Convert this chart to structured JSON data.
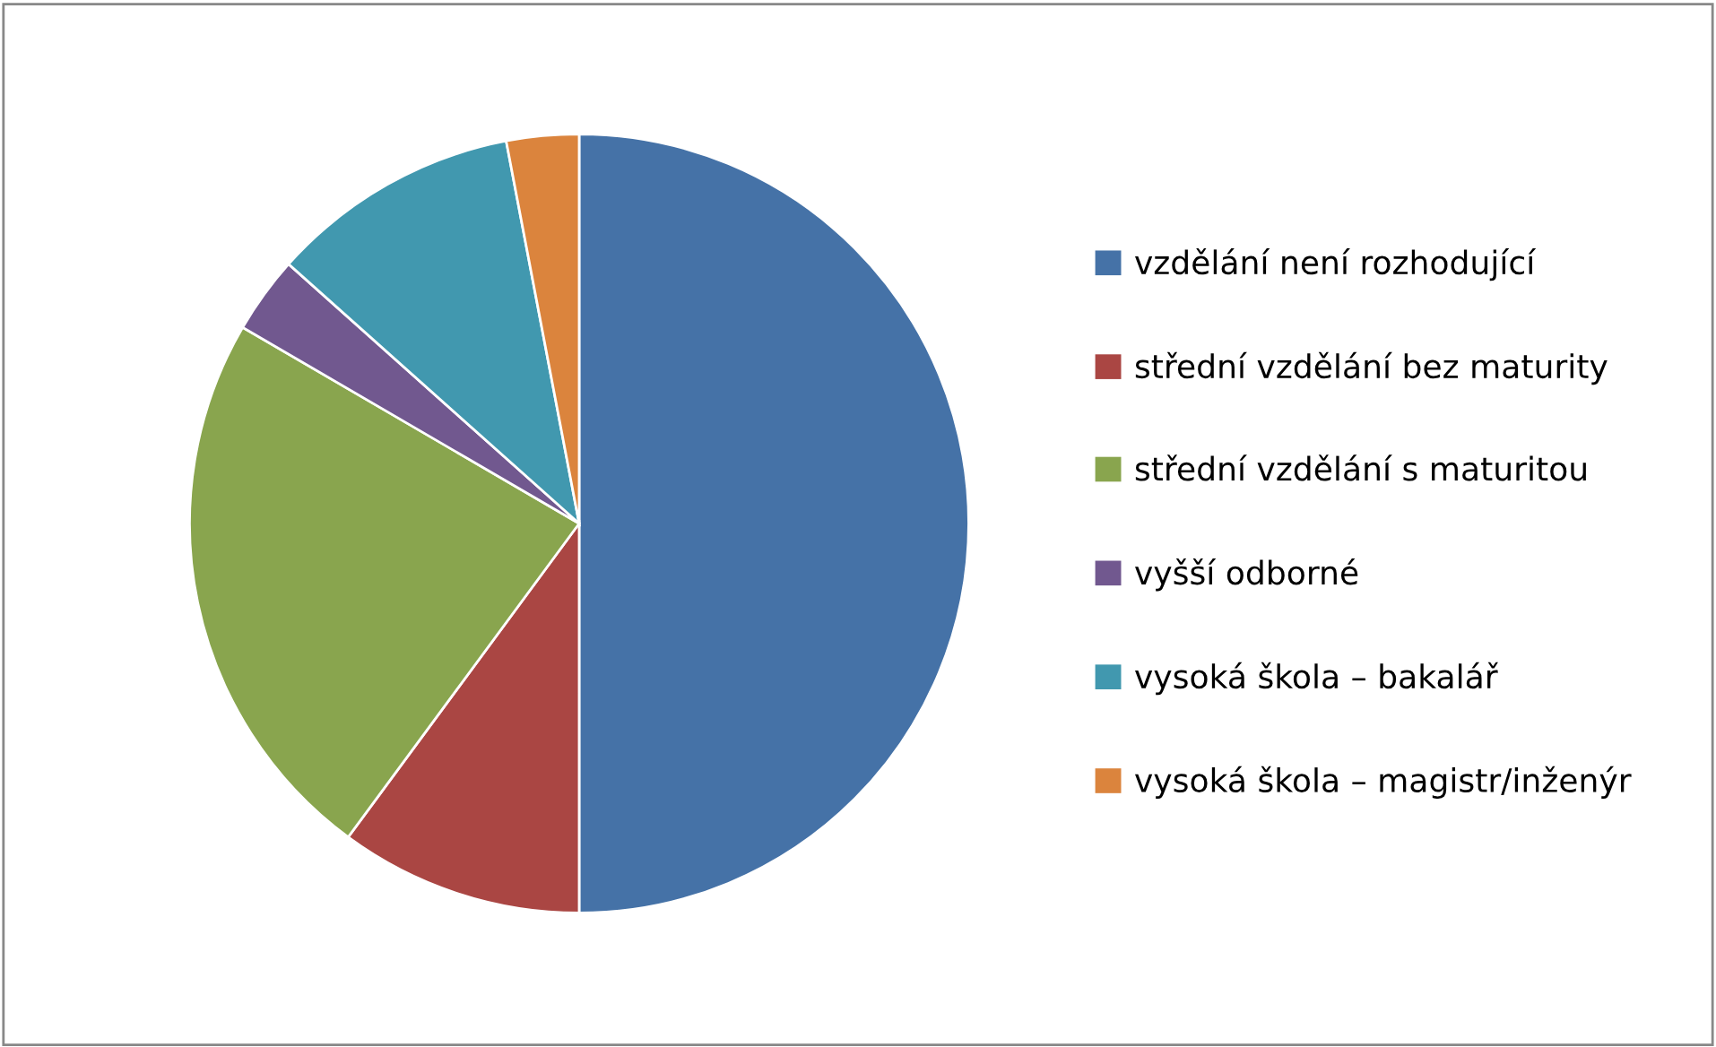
{
  "chart_data": {
    "type": "pie",
    "categories": [
      "vzdělání není rozhodující",
      "střední vzdělání bez maturity",
      "střední vzdělání s maturitou",
      "vyšší odborné",
      "vysoká škola – bakalář",
      "vysoká škola – magistr/inženýr"
    ],
    "values": [
      50,
      10.1,
      23.3,
      3.2,
      10.4,
      3.0
    ],
    "colors": [
      "#4572a7",
      "#aa4643",
      "#89a54e",
      "#71588f",
      "#4198af",
      "#db843d"
    ],
    "legend": "right"
  }
}
